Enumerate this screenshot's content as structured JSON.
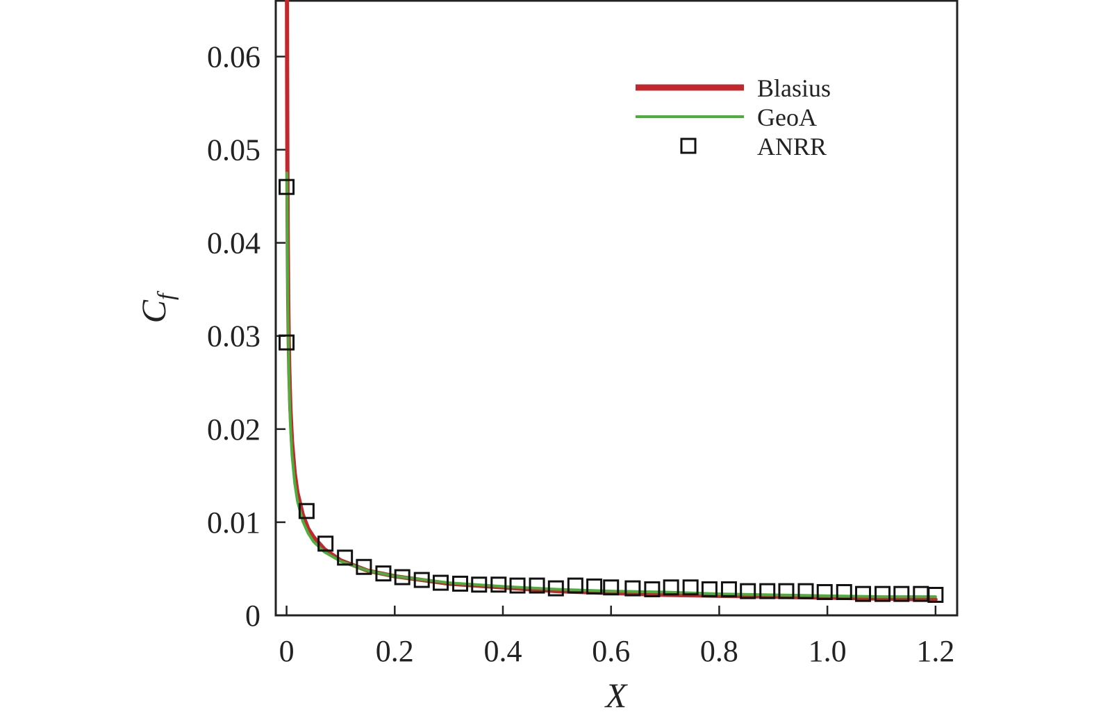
{
  "chart_data": {
    "type": "line",
    "title": "",
    "xlabel": "X",
    "ylabel_main": "C",
    "ylabel_sub": "f",
    "xlim": [
      -0.02,
      1.24
    ],
    "ylim": [
      0,
      0.066
    ],
    "x_ticks": [
      0,
      0.2,
      0.4,
      0.6,
      0.8,
      1.0,
      1.2
    ],
    "x_tick_labels": [
      "0",
      "0.2",
      "0.4",
      "0.6",
      "0.8",
      "1.0",
      "1.2"
    ],
    "y_ticks": [
      0,
      0.01,
      0.02,
      0.03,
      0.04,
      0.05,
      0.06
    ],
    "y_tick_labels": [
      "0",
      "0.01",
      "0.02",
      "0.03",
      "0.04",
      "0.05",
      "0.06"
    ],
    "grid": false,
    "legend_position": "top-right",
    "series": [
      {
        "name": "Blasius",
        "style": "line",
        "color": "#c0282d",
        "x": [
          0.0008,
          0.001,
          0.0015,
          0.002,
          0.003,
          0.004,
          0.005,
          0.007,
          0.01,
          0.015,
          0.02,
          0.03,
          0.04,
          0.05,
          0.07,
          0.1,
          0.15,
          0.2,
          0.3,
          0.4,
          0.5,
          0.6,
          0.7,
          0.8,
          0.9,
          1.0,
          1.1,
          1.2
        ],
        "y": [
          0.0661,
          0.0591,
          0.0482,
          0.0418,
          0.0341,
          0.0295,
          0.0264,
          0.0223,
          0.0187,
          0.0153,
          0.0132,
          0.0108,
          0.0093,
          0.0084,
          0.0071,
          0.0059,
          0.0048,
          0.0042,
          0.0034,
          0.003,
          0.0026,
          0.0024,
          0.0022,
          0.0021,
          0.002,
          0.0019,
          0.0018,
          0.0017
        ]
      },
      {
        "name": "GeoA",
        "style": "line",
        "color": "#4caf3c",
        "x": [
          0.0005,
          0.001,
          0.0015,
          0.002,
          0.003,
          0.004,
          0.005,
          0.007,
          0.01,
          0.015,
          0.02,
          0.03,
          0.04,
          0.05,
          0.07,
          0.1,
          0.15,
          0.2,
          0.3,
          0.4,
          0.5,
          0.6,
          0.7,
          0.8,
          0.9,
          1.0,
          1.1,
          1.2
        ],
        "y": [
          0.0475,
          0.0442,
          0.0395,
          0.0358,
          0.0305,
          0.0268,
          0.0242,
          0.0205,
          0.0172,
          0.0142,
          0.0123,
          0.0101,
          0.0088,
          0.0079,
          0.0068,
          0.0058,
          0.0048,
          0.0042,
          0.0035,
          0.0031,
          0.0028,
          0.0026,
          0.0025,
          0.0023,
          0.0022,
          0.0021,
          0.002,
          0.002
        ]
      },
      {
        "name": "ANRR",
        "style": "markers",
        "marker": "square",
        "color": "#111111",
        "x": [
          0.0,
          0.0,
          0.037,
          0.072,
          0.108,
          0.143,
          0.179,
          0.214,
          0.25,
          0.285,
          0.321,
          0.356,
          0.392,
          0.427,
          0.463,
          0.498,
          0.534,
          0.569,
          0.6,
          0.64,
          0.676,
          0.711,
          0.747,
          0.782,
          0.818,
          0.853,
          0.889,
          0.924,
          0.96,
          0.995,
          1.031,
          1.066,
          1.102,
          1.137,
          1.173,
          1.2
        ],
        "y": [
          0.046,
          0.0293,
          0.0112,
          0.0077,
          0.0062,
          0.0052,
          0.0045,
          0.0041,
          0.0038,
          0.0035,
          0.0034,
          0.0033,
          0.0033,
          0.0032,
          0.0032,
          0.0029,
          0.0032,
          0.0031,
          0.003,
          0.0029,
          0.0028,
          0.003,
          0.003,
          0.0028,
          0.0028,
          0.0026,
          0.0026,
          0.0026,
          0.0026,
          0.0025,
          0.0025,
          0.0023,
          0.0023,
          0.0023,
          0.0023,
          0.0022
        ]
      }
    ]
  }
}
